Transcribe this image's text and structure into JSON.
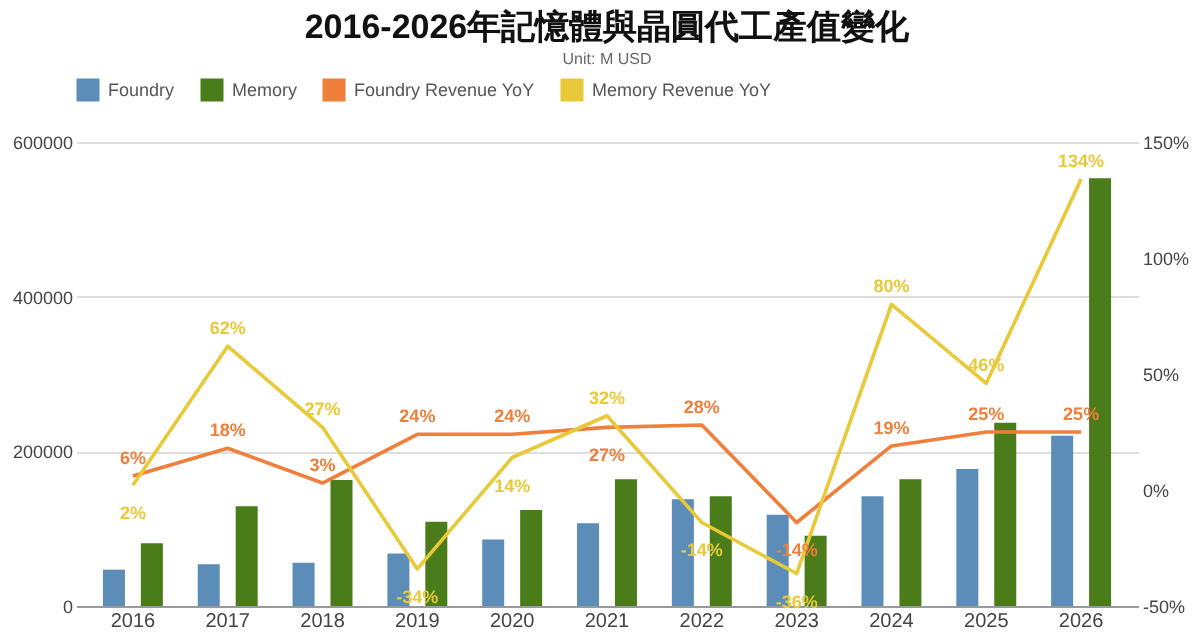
{
  "chart_data": {
    "type": "bar",
    "title": "2016-2026年記憶體與晶圓代工產值變化",
    "annotations": [
      "Unit: M USD"
    ],
    "categories": [
      "2016",
      "2017",
      "2018",
      "2019",
      "2020",
      "2021",
      "2022",
      "2023",
      "2024",
      "2025",
      "2026"
    ],
    "series": [
      {
        "name": "Foundry",
        "color": "#5b8db8",
        "values": [
          47000,
          54000,
          56000,
          68000,
          86000,
          107000,
          138000,
          118000,
          142000,
          177000,
          220000
        ]
      },
      {
        "name": "Memory",
        "color": "#4a7c1a",
        "values": [
          81000,
          129000,
          163000,
          109000,
          124000,
          164000,
          142000,
          91000,
          164000,
          237000,
          553000
        ]
      },
      {
        "name": "Foundry Revenue YoY",
        "type": "line",
        "axis": "y2",
        "color": "#f07f3c",
        "values": [
          6,
          18,
          3,
          24,
          24,
          27,
          28,
          -14,
          19,
          25,
          25
        ],
        "value_labels": [
          "6%",
          "18%",
          "3%",
          "24%",
          "24%",
          "27%",
          "28%",
          "-14%",
          "19%",
          "25%",
          "25%"
        ]
      },
      {
        "name": "Memory Revenue YoY",
        "type": "line",
        "axis": "y2",
        "color": "#e8c93a",
        "values": [
          2,
          62,
          27,
          -34,
          14,
          32,
          -14,
          -36,
          80,
          46,
          134
        ],
        "value_labels": [
          "2%",
          "62%",
          "27%",
          "-34%",
          "14%",
          "32%",
          "-14%",
          "-36%",
          "80%",
          "46%",
          "134%"
        ]
      }
    ],
    "ylim": [
      0,
      600000
    ],
    "yticks": [
      0,
      200000,
      400000,
      600000
    ],
    "y2lim": [
      -50,
      150
    ],
    "y2ticks": [
      {
        "value": -50,
        "label": "-50%"
      },
      {
        "value": 0,
        "label": "0%"
      },
      {
        "value": 50,
        "label": "50%"
      },
      {
        "value": 100,
        "label": "100%"
      },
      {
        "value": 150,
        "label": "150%"
      }
    ],
    "grid": "y",
    "legend": "top",
    "marker": "none",
    "line_style": "solid"
  }
}
